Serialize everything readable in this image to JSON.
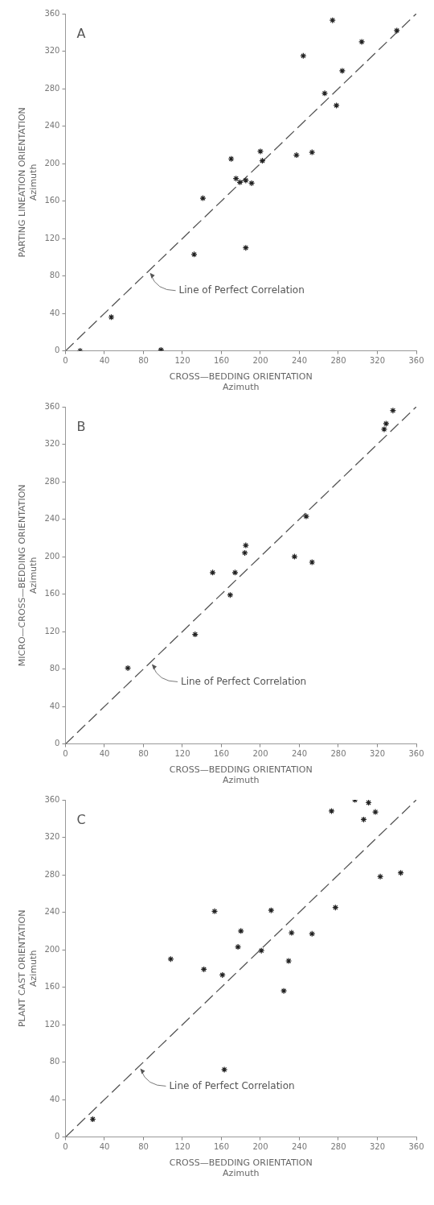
{
  "chart_data": [
    {
      "type": "scatter",
      "title": "A",
      "xlabel": "CROSS—BEDDING ORIENTATION\nAzimuth",
      "ylabel": "PARTING LINEATION ORIENTATION\nAzimuth",
      "xlim": [
        0,
        360
      ],
      "ylim": [
        0,
        360
      ],
      "xticks": [
        0,
        40,
        80,
        120,
        160,
        200,
        240,
        280,
        320,
        360
      ],
      "yticks": [
        0,
        40,
        80,
        120,
        160,
        200,
        240,
        280,
        320,
        360
      ],
      "grid": false,
      "legend": false,
      "marker": "cross",
      "annotations": [
        {
          "text": "Line of Perfect Correlation",
          "x": 85,
          "y": 85
        }
      ],
      "series": [
        {
          "color": "#222222",
          "x": [
            15,
            47,
            98,
            132,
            141,
            170,
            175,
            179,
            185,
            191,
            185,
            200,
            202,
            237,
            253,
            244,
            274,
            284,
            266,
            278,
            304,
            340
          ],
          "values": [
            0,
            36,
            1,
            103,
            163,
            205,
            184,
            180,
            182,
            179,
            110,
            213,
            203,
            209,
            212,
            315,
            353,
            299,
            275,
            262,
            330,
            342
          ]
        },
        {
          "type": "line",
          "color": "#555555",
          "line_style": "dashed",
          "marker": "none",
          "x": [
            0,
            360
          ],
          "values": [
            0,
            360
          ]
        }
      ]
    },
    {
      "type": "scatter",
      "title": "B",
      "xlabel": "CROSS—BEDDING ORIENTATION\nAzimuth",
      "ylabel": "MICRO—CROSS—BEDDING ORIENTATION\nAzimuth",
      "xlim": [
        0,
        360
      ],
      "ylim": [
        0,
        360
      ],
      "xticks": [
        0,
        40,
        80,
        120,
        160,
        200,
        240,
        280,
        320,
        360
      ],
      "yticks": [
        0,
        40,
        80,
        120,
        160,
        200,
        240,
        280,
        320,
        360
      ],
      "grid": false,
      "legend": false,
      "marker": "cross",
      "annotations": [
        {
          "text": "Line of Perfect Correlation",
          "x": 87,
          "y": 87
        }
      ],
      "series": [
        {
          "color": "#222222",
          "x": [
            64,
            133,
            151,
            169,
            174,
            185,
            184,
            235,
            247,
            253,
            327,
            329,
            336
          ],
          "values": [
            81,
            117,
            183,
            159,
            183,
            212,
            204,
            200,
            243,
            194,
            336,
            342,
            356
          ]
        },
        {
          "type": "line",
          "color": "#555555",
          "line_style": "dashed",
          "marker": "none",
          "x": [
            0,
            360
          ],
          "values": [
            0,
            360
          ]
        }
      ]
    },
    {
      "type": "scatter",
      "title": "C",
      "xlabel": "CROSS—BEDDING ORIENTATION\nAzimuth",
      "ylabel": "PLANT CAST ORIENTATION\nAzimuth",
      "xlim": [
        0,
        360
      ],
      "ylim": [
        0,
        360
      ],
      "xticks": [
        0,
        40,
        80,
        120,
        160,
        200,
        240,
        280,
        320,
        360
      ],
      "yticks": [
        0,
        40,
        80,
        120,
        160,
        200,
        240,
        280,
        320,
        360
      ],
      "grid": false,
      "legend": false,
      "marker": "cross",
      "annotations": [
        {
          "text": "Line of Perfect Correlation",
          "x": 75,
          "y": 75
        }
      ],
      "series": [
        {
          "color": "#222222",
          "x": [
            28,
            108,
            142,
            153,
            161,
            163,
            180,
            177,
            201,
            211,
            229,
            224,
            232,
            253,
            277,
            273,
            297,
            306,
            311,
            318,
            323,
            344
          ],
          "values": [
            19,
            190,
            179,
            241,
            173,
            72,
            220,
            203,
            199,
            242,
            188,
            156,
            218,
            217,
            245,
            348,
            360,
            339,
            357,
            347,
            278,
            282
          ]
        },
        {
          "type": "line",
          "color": "#555555",
          "line_style": "dashed",
          "marker": "none",
          "x": [
            0,
            360
          ],
          "values": [
            0,
            360
          ]
        }
      ]
    }
  ]
}
